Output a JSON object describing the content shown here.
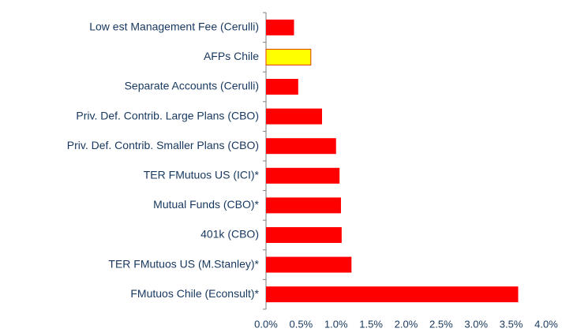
{
  "chart_data": {
    "type": "barh",
    "categories": [
      "Low est Management Fee (Cerulli)",
      "AFPs Chile",
      "Separate Accounts (Cerulli)",
      "Priv. Def. Contrib. Large Plans (CBO)",
      "Priv. Def. Contrib. Smaller Plans (CBO)",
      "TER FMutuos US (ICI)*",
      "Mutual Funds (CBO)*",
      "401k (CBO)",
      "TER FMutuos US (M.Stanley)*",
      "FMutuos Chile (Econsult)*"
    ],
    "values": [
      0.4,
      0.64,
      0.46,
      0.8,
      1.0,
      1.05,
      1.07,
      1.08,
      1.22,
      3.6
    ],
    "colors": [
      "#ff0000",
      "#ffff00",
      "#ff0000",
      "#ff0000",
      "#ff0000",
      "#ff0000",
      "#ff0000",
      "#ff0000",
      "#ff0000",
      "#ff0000"
    ],
    "xlim": [
      0,
      4
    ],
    "xticks": [
      {
        "value": 0,
        "label": "0.0%"
      },
      {
        "value": 0.5,
        "label": "0.5%"
      },
      {
        "value": 1,
        "label": "1.0%"
      },
      {
        "value": 1.5,
        "label": "1.5%"
      },
      {
        "value": 2,
        "label": "2.0%"
      },
      {
        "value": 2.5,
        "label": "2.5%"
      },
      {
        "value": 3,
        "label": "3.0%"
      },
      {
        "value": 3.5,
        "label": "3.5%"
      },
      {
        "value": 4,
        "label": "4.0%"
      }
    ],
    "grid": false
  }
}
